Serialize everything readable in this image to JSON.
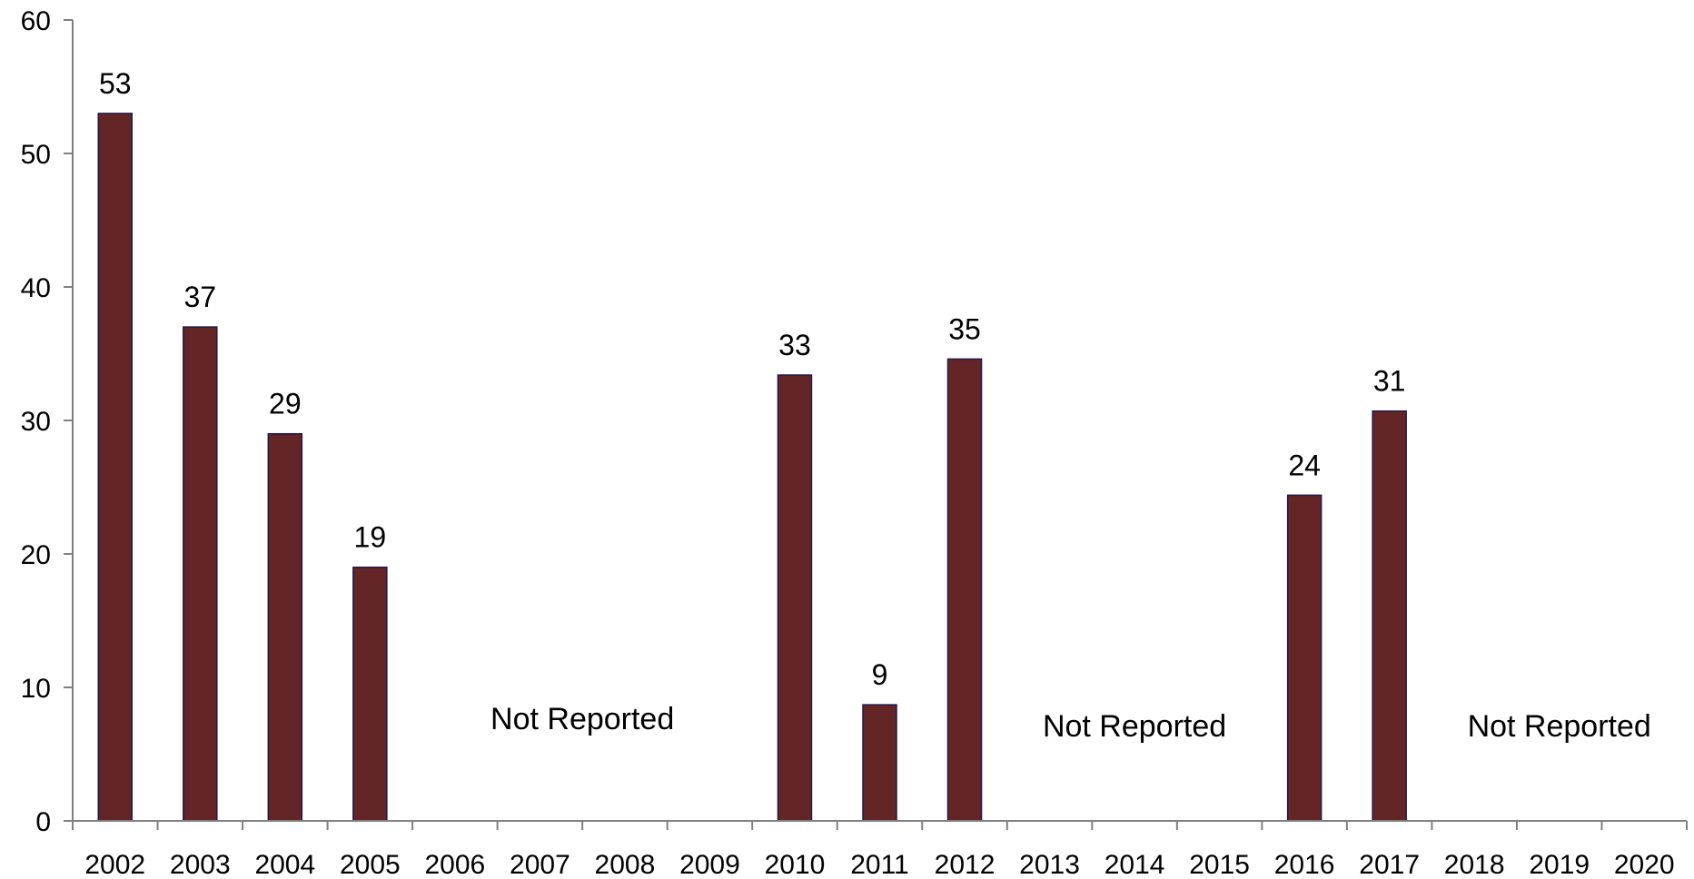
{
  "chart_data": {
    "type": "bar",
    "categories": [
      "2002",
      "2003",
      "2004",
      "2005",
      "2006",
      "2007",
      "2008",
      "2009",
      "2010",
      "2011",
      "2012",
      "2013",
      "2014",
      "2015",
      "2016",
      "2017",
      "2018",
      "2019",
      "2020"
    ],
    "values": [
      53,
      37,
      29,
      19,
      null,
      null,
      null,
      null,
      33.4,
      8.7,
      34.6,
      null,
      null,
      null,
      24.4,
      30.7,
      null,
      null,
      null
    ],
    "data_labels": [
      "53",
      "37",
      "29",
      "19",
      "",
      "",
      "",
      "",
      "33",
      "9",
      "35",
      "",
      "",
      "",
      "24",
      "31",
      "",
      "",
      ""
    ],
    "ylim": [
      0,
      60
    ],
    "yticks": [
      "0",
      "10",
      "20",
      "30",
      "40",
      "50",
      "60"
    ],
    "gaps": [
      {
        "label": "Not Reported",
        "from": "2006",
        "to": "2009"
      },
      {
        "label": "Not Reported",
        "from": "2013",
        "to": "2015"
      },
      {
        "label": "Not Reported",
        "from": "2018",
        "to": "2020"
      }
    ],
    "colors": {
      "bar_fill": "#632526",
      "bar_stroke": "#1f1a4a",
      "axis": "#808080"
    },
    "grid": false,
    "legend": "none",
    "title": "",
    "xlabel": "",
    "ylabel": ""
  }
}
